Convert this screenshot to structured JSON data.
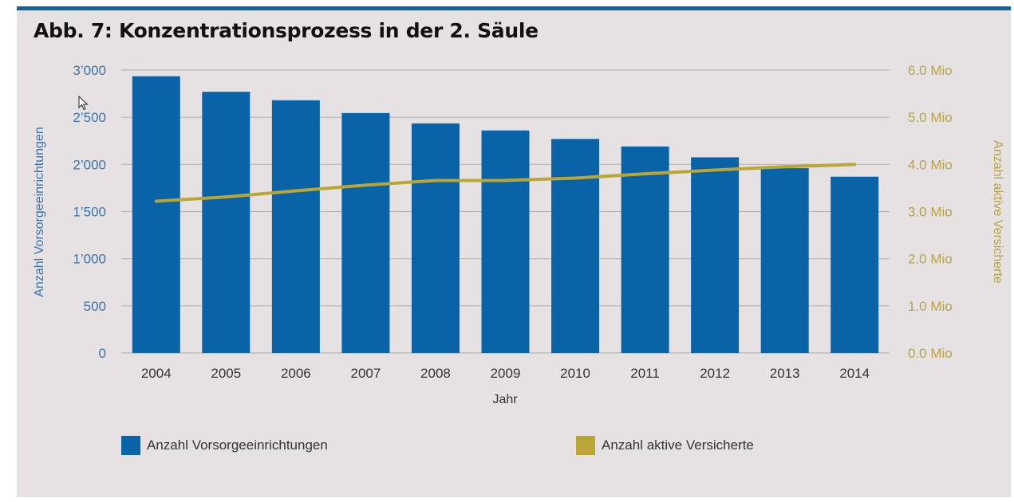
{
  "title": "Abb. 7: Konzentrationsprozess in der 2. Säule",
  "colors": {
    "bars": "#0963a6",
    "line": "#b9a635",
    "left_axis": "#3a74ad",
    "right_axis": "#b6a347",
    "grid": "#b8b5b5"
  },
  "chart_data": {
    "type": "bar",
    "categories": [
      "2004",
      "2005",
      "2006",
      "2007",
      "2008",
      "2009",
      "2010",
      "2011",
      "2012",
      "2013",
      "2014"
    ],
    "series": [
      {
        "name": "Anzahl Vorsorgeeinrichtungen",
        "type": "bar",
        "axis": "left",
        "values": [
          2935,
          2770,
          2680,
          2545,
          2435,
          2360,
          2270,
          2190,
          2075,
          1960,
          1870
        ]
      },
      {
        "name": "Anzahl aktive Versicherte",
        "type": "line",
        "axis": "right",
        "values": [
          3.22,
          3.31,
          3.44,
          3.56,
          3.66,
          3.66,
          3.71,
          3.8,
          3.88,
          3.95,
          4.0
        ]
      }
    ],
    "xlabel": "Jahr",
    "ylabel_left": "Anzahl Vorsorgeeinrichtungen",
    "ylabel_right": "Anzahl aktive Versicherte",
    "ylim_left": [
      0,
      3000
    ],
    "ylim_right": [
      0,
      6
    ],
    "yticks_left": [
      0,
      500,
      1000,
      1500,
      2000,
      2500,
      3000
    ],
    "yticks_left_labels": [
      "0",
      "500",
      "1’000",
      "1’500",
      "2’000",
      "2’500",
      "3’000"
    ],
    "yticks_right": [
      0,
      1,
      2,
      3,
      4,
      5,
      6
    ],
    "yticks_right_labels": [
      "0.0 Mio",
      "1.0 Mio",
      "2.0 Mio",
      "3.0 Mio",
      "4.0 Mio",
      "5.0 Mio",
      "6.0 Mio"
    ],
    "grid": true,
    "legend_position": "bottom"
  },
  "legend": {
    "bars_label": "Anzahl Vorsorgeeinrichtungen",
    "line_label": "Anzahl aktive Versicherte"
  }
}
